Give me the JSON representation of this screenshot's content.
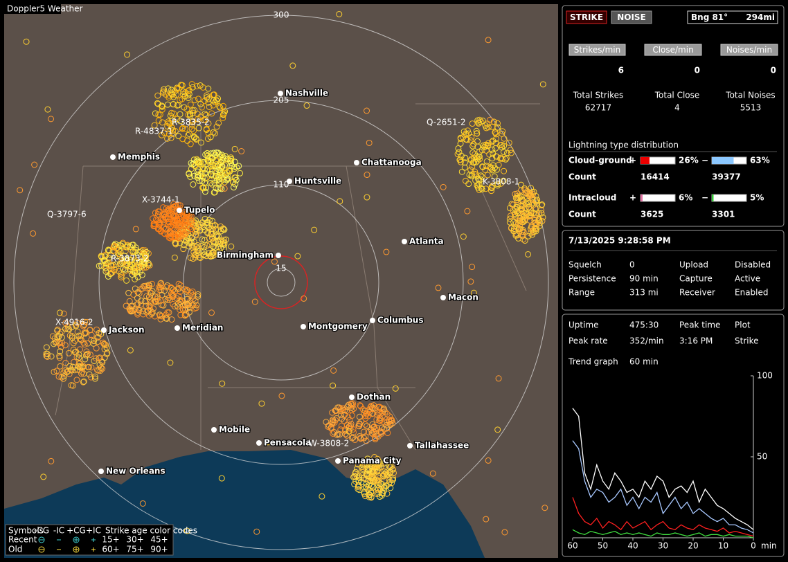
{
  "map": {
    "title": "Doppler5 Weather",
    "rings": [
      "300",
      "205",
      "110",
      "15"
    ],
    "cities": [
      "Nashville",
      "Memphis",
      "Chattanooga",
      "Huntsville",
      "Tupelo",
      "Atlanta",
      "Birmingham",
      "Macon",
      "Meridian",
      "Jackson",
      "Montgomery",
      "Columbus",
      "Dothan",
      "Mobile",
      "Pensacola",
      "Tallahassee",
      "Panama City",
      "New Orleans"
    ],
    "sensors": [
      "R-4837-1",
      "R-3835-2",
      "X-3744-1",
      "Q-3797-6",
      "R-3873-2",
      "X-4916-2",
      "Q-2651-2",
      "K-3808-1",
      "W-3808-2"
    ],
    "legend": {
      "symbols_label": "Symbols",
      "col_headers": [
        "-CG",
        "-IC",
        "+CG",
        "+IC"
      ],
      "age_label": "Strike age color codes",
      "rows": [
        {
          "label": "Recent",
          "ages": [
            "15+",
            "30+",
            "45+"
          ]
        },
        {
          "label": "Old",
          "ages": [
            "60+",
            "75+",
            "90+"
          ]
        }
      ]
    }
  },
  "status": {
    "strike_button": "STRIKE",
    "noise_button": "NOISE",
    "bearing": "Bng 81°",
    "distance": "294mi",
    "rates": [
      {
        "label": "Strikes/min",
        "value": 6
      },
      {
        "label": "Close/min",
        "value": 0
      },
      {
        "label": "Noises/min",
        "value": 0
      }
    ],
    "totals": [
      {
        "label": "Total Strikes",
        "value": 62717
      },
      {
        "label": "Total Close",
        "value": 4
      },
      {
        "label": "Total Noises",
        "value": 5513
      }
    ],
    "distribution_title": "Lightning type distribution",
    "count_label": "Count",
    "pos_sign": "+",
    "neg_sign": "−",
    "distribution": [
      {
        "label": "Cloud-ground",
        "pos_pct": {
          "value": 26,
          "label": "26%"
        },
        "neg_pct": {
          "value": 63,
          "label": "63%"
        },
        "pos_count": 16414,
        "neg_count": 39377
      },
      {
        "label": "Intracloud",
        "pos_pct": {
          "value": 6,
          "label": "6%"
        },
        "neg_pct": {
          "value": 5,
          "label": "5%"
        },
        "pos_count": 3625,
        "neg_count": 3301
      }
    ]
  },
  "settings": {
    "datetime": "7/13/2025 9:28:58 PM",
    "rows": [
      [
        "Squelch",
        "0",
        "Upload",
        "Disabled"
      ],
      [
        "Persistence",
        "90 min",
        "Capture",
        "Active"
      ],
      [
        "Range",
        "313 mi",
        "Receiver",
        "Enabled"
      ]
    ]
  },
  "stats": {
    "rows": [
      [
        "Uptime",
        "475:30",
        "Peak time",
        "Plot"
      ],
      [
        "Peak rate",
        "352/min",
        "3:16 PM",
        "Strike"
      ],
      [
        "Trend graph",
        "60 min"
      ]
    ],
    "chart_data": {
      "type": "line",
      "x": [
        60,
        58,
        56,
        54,
        52,
        50,
        48,
        46,
        44,
        42,
        40,
        38,
        36,
        34,
        32,
        30,
        28,
        26,
        24,
        22,
        20,
        18,
        16,
        14,
        12,
        10,
        8,
        6,
        4,
        2,
        0
      ],
      "xlim": [
        60,
        0
      ],
      "xticks": [
        60,
        50,
        40,
        30,
        20,
        10,
        0
      ],
      "x_unit": "min",
      "ylim": [
        0,
        100
      ],
      "yticks": [
        100,
        50
      ],
      "series": [
        {
          "color": "#ffffff",
          "values": [
            80,
            75,
            40,
            30,
            45,
            35,
            30,
            40,
            35,
            28,
            30,
            25,
            35,
            30,
            38,
            35,
            25,
            30,
            32,
            28,
            35,
            22,
            30,
            25,
            20,
            18,
            15,
            12,
            10,
            8,
            5
          ]
        },
        {
          "color": "#a8c8ff",
          "values": [
            60,
            55,
            35,
            25,
            30,
            28,
            22,
            25,
            30,
            20,
            25,
            18,
            25,
            22,
            28,
            15,
            20,
            25,
            18,
            22,
            15,
            18,
            15,
            12,
            10,
            12,
            8,
            8,
            6,
            5,
            3
          ]
        },
        {
          "color": "#ff2020",
          "values": [
            25,
            15,
            10,
            8,
            12,
            6,
            10,
            8,
            5,
            10,
            6,
            8,
            10,
            5,
            8,
            10,
            6,
            5,
            8,
            6,
            5,
            8,
            6,
            5,
            4,
            6,
            3,
            4,
            3,
            2,
            1
          ]
        },
        {
          "color": "#40e040",
          "values": [
            5,
            3,
            2,
            4,
            3,
            2,
            3,
            4,
            2,
            3,
            2,
            3,
            2,
            1,
            3,
            2,
            2,
            3,
            2,
            1,
            2,
            3,
            1,
            2,
            2,
            1,
            2,
            1,
            1,
            1,
            0
          ]
        }
      ]
    }
  }
}
